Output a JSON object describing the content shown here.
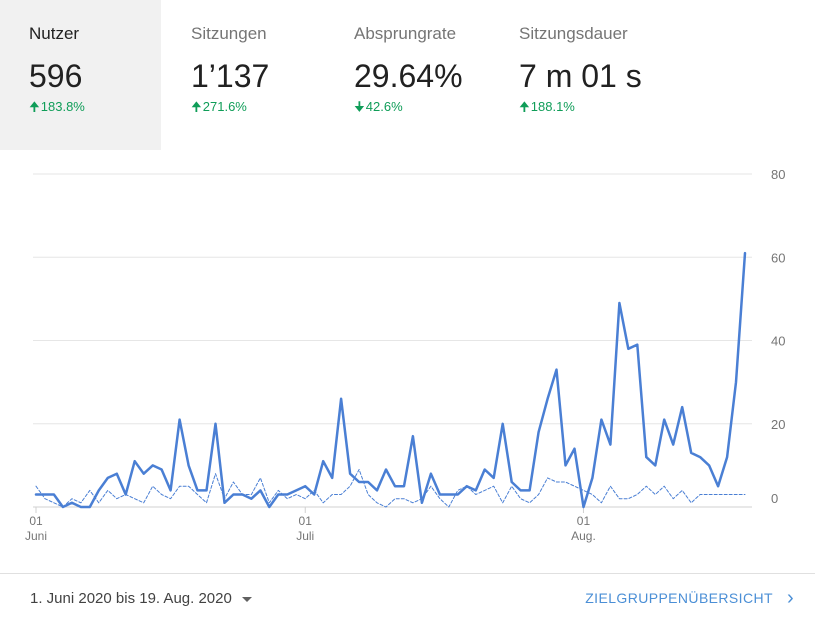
{
  "metrics": [
    {
      "label": "Nutzer",
      "value": "596",
      "change": "183.8%",
      "direction": "up",
      "active": true
    },
    {
      "label": "Sitzungen",
      "value": "1’137",
      "change": "271.6%",
      "direction": "up",
      "active": false
    },
    {
      "label": "Absprungrate",
      "value": "29.64%",
      "change": "42.6%",
      "direction": "down",
      "active": false
    },
    {
      "label": "Sitzungsdauer",
      "value": "7 m 01 s",
      "change": "188.1%",
      "direction": "up",
      "active": false
    }
  ],
  "colors": {
    "accent": "#4285f4",
    "line": "#4a7fd4",
    "positive": "#0f9d58",
    "gridline": "#e6e6e6"
  },
  "footer": {
    "date_range": "1. Juni 2020 bis 19. Aug. 2020",
    "overview_link": "ZIELGRUPPENÜBERSICHT",
    "icons": {
      "dropdown": "caret-down-icon",
      "link": "chevron-right-icon"
    }
  },
  "chart_data": {
    "type": "line",
    "ylim": [
      0,
      80
    ],
    "yticks": [
      0,
      20,
      40,
      60,
      80
    ],
    "grid": true,
    "x_tick_labels": [
      {
        "index": 0,
        "day": "01",
        "month": "Juni"
      },
      {
        "index": 30,
        "day": "01",
        "month": "Juli"
      },
      {
        "index": 61,
        "day": "01",
        "month": "Aug."
      }
    ],
    "series": [
      {
        "style": "solid",
        "values": [
          3,
          3,
          3,
          0,
          1,
          0,
          0,
          4,
          7,
          8,
          3,
          11,
          8,
          10,
          9,
          4,
          21,
          10,
          4,
          4,
          20,
          1,
          3,
          3,
          2,
          4,
          0,
          3,
          3,
          4,
          5,
          3,
          11,
          7,
          26,
          8,
          6,
          6,
          4,
          9,
          5,
          5,
          17,
          1,
          8,
          3,
          3,
          3,
          5,
          4,
          9,
          7,
          20,
          6,
          4,
          4,
          18,
          26,
          33,
          10,
          14,
          0,
          7,
          21,
          15,
          49,
          38,
          39,
          12,
          10,
          21,
          15,
          24,
          13,
          12,
          10,
          5,
          12,
          30,
          61
        ]
      },
      {
        "style": "dashed",
        "values": [
          5,
          2,
          1,
          0,
          2,
          1,
          4,
          1,
          4,
          2,
          3,
          2,
          1,
          5,
          3,
          2,
          5,
          5,
          3,
          1,
          8,
          2,
          6,
          3,
          3,
          7,
          1,
          4,
          2,
          3,
          2,
          4,
          1,
          3,
          3,
          5,
          9,
          3,
          1,
          0,
          2,
          2,
          1,
          2,
          5,
          2,
          0,
          4,
          5,
          3,
          4,
          5,
          1,
          5,
          2,
          1,
          3,
          7,
          6,
          6,
          5,
          4,
          3,
          1,
          5,
          2,
          2,
          3,
          5,
          3,
          5,
          2,
          4,
          1,
          3,
          3,
          3,
          3,
          3,
          3
        ]
      }
    ]
  }
}
